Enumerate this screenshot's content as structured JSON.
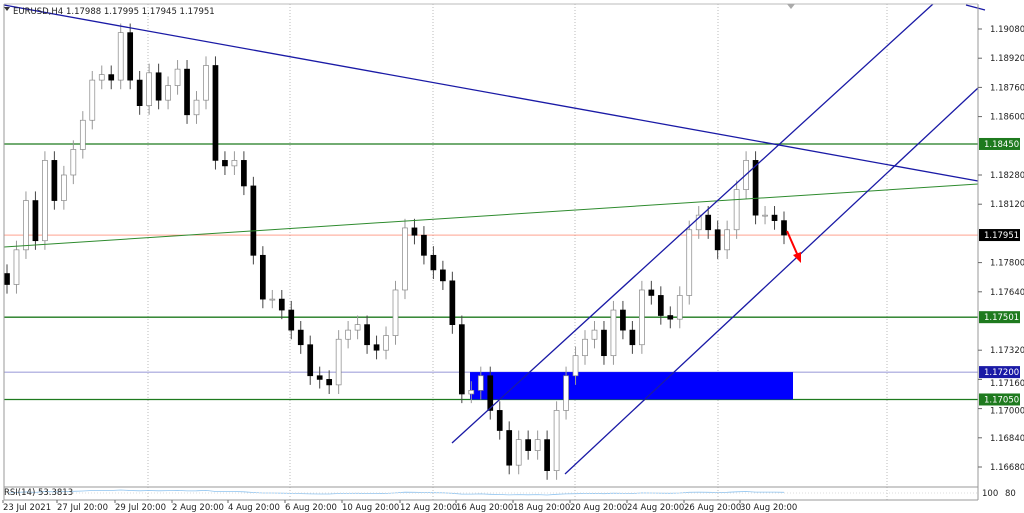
{
  "header": {
    "symbol": "EURUSD,H4",
    "ohlc": "1.17988 1.17995 1.17945 1.17951"
  },
  "indicator": {
    "label": "RSI(14) 53.3813",
    "scale_top": "100",
    "scale_low": "80"
  },
  "colors": {
    "bull": "#ffffff",
    "bear": "#000000",
    "level": "#1e7a1e",
    "trend": "#1a1aa6",
    "zone": "#0000ff",
    "arrow": "#ff0000",
    "current": "#ff6a4d",
    "rsi": "#8fc4f0"
  },
  "chart_data": {
    "type": "candlestick",
    "title": "EURUSD,H4",
    "ylim": [
      1.165,
      1.1925
    ],
    "y_ticks": [
      "1.19080",
      "1.18920",
      "1.18760",
      "1.18600",
      "1.18280",
      "1.18120",
      "1.17800",
      "1.17640",
      "1.17320",
      "1.17160",
      "1.17000",
      "1.16840",
      "1.16680"
    ],
    "x_ticks": [
      "23 Jul 2021",
      "27 Jul 20:00",
      "29 Jul 20:00",
      "2 Aug 20:00",
      "4 Aug 20:00",
      "6 Aug 20:00",
      "10 Aug 20:00",
      "12 Aug 20:00",
      "16 Aug 20:00",
      "18 Aug 20:00",
      "20 Aug 20:00",
      "24 Aug 20:00",
      "26 Aug 20:00",
      "30 Aug 20:00"
    ],
    "close": [
      1.1768,
      1.1787,
      1.1814,
      1.1792,
      1.1836,
      1.1814,
      1.1828,
      1.1842,
      1.1858,
      1.188,
      1.1883,
      1.188,
      1.1906,
      1.188,
      1.1866,
      1.1884,
      1.1869,
      1.1877,
      1.1886,
      1.1861,
      1.1869,
      1.1888,
      1.1836,
      1.1833,
      1.1836,
      1.1822,
      1.1784,
      1.176,
      1.176,
      1.1754,
      1.1743,
      1.1735,
      1.1718,
      1.1716,
      1.1713,
      1.1738,
      1.1743,
      1.1746,
      1.1735,
      1.1732,
      1.174,
      1.1765,
      1.1799,
      1.1795,
      1.1784,
      1.1776,
      1.177,
      1.1746,
      1.1708,
      1.171,
      1.1718,
      1.1699,
      1.1688,
      1.1669,
      1.1683,
      1.1677,
      1.1683,
      1.1666,
      1.1699,
      1.1718,
      1.1729,
      1.1738,
      1.1743,
      1.1729,
      1.1754,
      1.1743,
      1.1735,
      1.1765,
      1.1762,
      1.1751,
      1.1749,
      1.1762,
      1.1798,
      1.1806,
      1.1798,
      1.1787,
      1.1798,
      1.182,
      1.1836,
      1.1806,
      1.1806,
      1.1803,
      1.17951
    ],
    "levels": [
      {
        "price": 1.1845,
        "label": "1.18450",
        "color": "#1e7a1e"
      },
      {
        "price": 1.17501,
        "label": "1.17501",
        "color": "#1e7a1e"
      },
      {
        "price": 1.172,
        "label": "1.17200",
        "color": "#1a1aa6"
      },
      {
        "price": 1.1705,
        "label": "1.17050",
        "color": "#1e7a1e"
      }
    ],
    "current_price": {
      "price": 1.17951,
      "label": "1.17951"
    },
    "zone": {
      "top": 1.172,
      "bottom": 1.1705
    }
  }
}
